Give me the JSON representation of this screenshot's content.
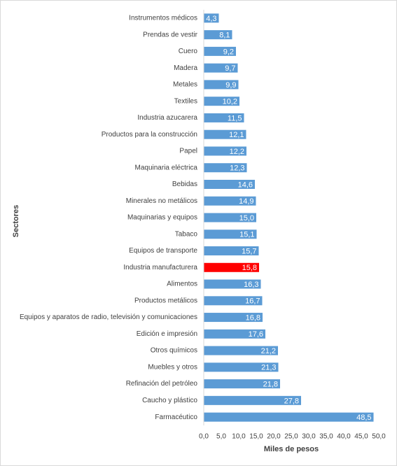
{
  "chart_data": {
    "type": "bar",
    "orientation": "horizontal",
    "y_axis_label": "Sectores",
    "x_axis_label": "Miles de pesos",
    "categories": [
      "Instrumentos médicos",
      "Prendas de vestir",
      "Cuero",
      "Madera",
      "Metales",
      "Textiles",
      "Industria azucarera",
      "Productos para la construcción",
      "Papel",
      "Maquinaria eléctrica",
      "Bebidas",
      "Minerales no metálicos",
      "Maquinarias y equipos",
      "Tabaco",
      "Equipos de transporte",
      "Industria manufacturera",
      "Alimentos",
      "Productos metálicos",
      "Equipos y aparatos de radio, televisión y comunicaciones",
      "Edición e impresión",
      "Otros químicos",
      "Muebles y otros",
      "Refinación del petróleo",
      "Caucho y plástico",
      "Farmacéutico"
    ],
    "values": [
      4.3,
      8.1,
      9.2,
      9.7,
      9.9,
      10.2,
      11.5,
      12.1,
      12.2,
      12.3,
      14.6,
      14.9,
      15.0,
      15.1,
      15.7,
      15.8,
      16.3,
      16.7,
      16.8,
      17.6,
      21.2,
      21.3,
      21.8,
      27.8,
      48.5
    ],
    "value_labels": [
      "4,3",
      "8,1",
      "9,2",
      "9,7",
      "9,9",
      "10,2",
      "11,5",
      "12,1",
      "12,2",
      "12,3",
      "14,6",
      "14,9",
      "15,0",
      "15,1",
      "15,7",
      "15,8",
      "16,3",
      "16,7",
      "16,8",
      "17,6",
      "21,2",
      "21,3",
      "21,8",
      "27,8",
      "48,5"
    ],
    "colors": [
      "#5b9bd5",
      "#5b9bd5",
      "#5b9bd5",
      "#5b9bd5",
      "#5b9bd5",
      "#5b9bd5",
      "#5b9bd5",
      "#5b9bd5",
      "#5b9bd5",
      "#5b9bd5",
      "#5b9bd5",
      "#5b9bd5",
      "#5b9bd5",
      "#5b9bd5",
      "#5b9bd5",
      "#ff0000",
      "#5b9bd5",
      "#5b9bd5",
      "#5b9bd5",
      "#5b9bd5",
      "#5b9bd5",
      "#5b9bd5",
      "#5b9bd5",
      "#5b9bd5",
      "#5b9bd5"
    ],
    "xlim": [
      0,
      50
    ],
    "xticks": [
      {
        "value": 0,
        "label": "0,0"
      },
      {
        "value": 5,
        "label": "5,0"
      },
      {
        "value": 10,
        "label": "10,0"
      },
      {
        "value": 15,
        "label": "15,0"
      },
      {
        "value": 20,
        "label": "20,0"
      },
      {
        "value": 25,
        "label": "25,0"
      },
      {
        "value": 30,
        "label": "30,0"
      },
      {
        "value": 35,
        "label": "35,0"
      },
      {
        "value": 40,
        "label": "40,0"
      },
      {
        "value": 45,
        "label": "45,0"
      },
      {
        "value": 50,
        "label": "50,0"
      }
    ],
    "grid": false
  }
}
